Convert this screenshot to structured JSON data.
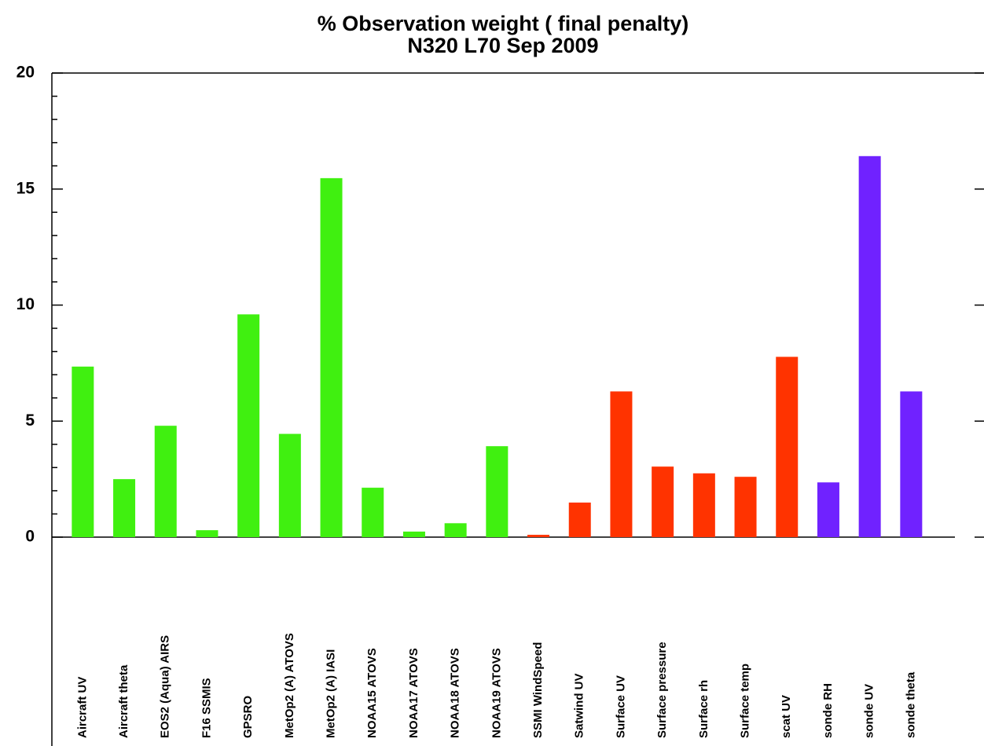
{
  "chart_data": {
    "type": "bar",
    "title": [
      "% Observation weight (  final penalty)",
      "N320 L70 Sep 2009"
    ],
    "categories": [
      "Aircraft UV",
      "Aircraft theta",
      "EOS2 (Aqua) AIRS",
      "F16 SSMIS",
      "GPSRO",
      "MetOp2 (A) ATOVS",
      "MetOp2 (A) IASI",
      "NOAA15 ATOVS",
      "NOAA17 ATOVS",
      "NOAA18 ATOVS",
      "NOAA19 ATOVS",
      "SSMI WindSpeed",
      "Satwind UV",
      "Surface UV",
      "Surface pressure",
      "Surface rh",
      "Surface temp",
      "scat UV",
      "sonde RH",
      "sonde UV",
      "sonde theta"
    ],
    "values": [
      7.35,
      2.5,
      4.8,
      0.3,
      9.6,
      4.45,
      15.47,
      2.13,
      0.24,
      0.6,
      3.92,
      0.1,
      1.49,
      6.28,
      3.04,
      2.75,
      2.6,
      7.77,
      2.36,
      16.42,
      6.28
    ],
    "colors": [
      "#40f010",
      "#40f010",
      "#40f010",
      "#40f010",
      "#40f010",
      "#40f010",
      "#40f010",
      "#40f010",
      "#40f010",
      "#40f010",
      "#40f010",
      "#ff3300",
      "#ff3300",
      "#ff3300",
      "#ff3300",
      "#ff3300",
      "#ff3300",
      "#ff3300",
      "#7022ff",
      "#7022ff",
      "#7022ff"
    ],
    "ylim": [
      -9,
      20
    ],
    "yticks": [
      0,
      5,
      10,
      15,
      20
    ],
    "minor_yticks": [
      1,
      2,
      3,
      4,
      6,
      7,
      8,
      9,
      11,
      12,
      13,
      14,
      16,
      17,
      18,
      19
    ]
  }
}
